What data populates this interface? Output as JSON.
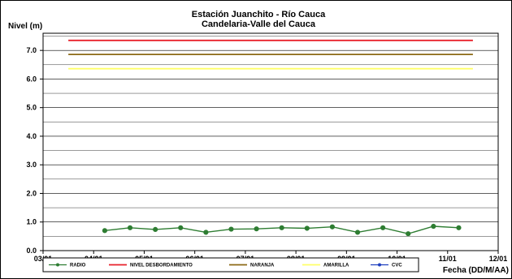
{
  "chart_data": {
    "type": "line",
    "title": "Estación Juanchito - Río Cauca",
    "subtitle": "Candelaria-Valle del Cauca",
    "ylabel": "Nivel (m)",
    "xlabel": "Fecha (DD/M/AA)",
    "x_ticks": [
      "03/01",
      "04/01",
      "05/01",
      "06/01",
      "07/01",
      "08/01",
      "09/01",
      "10/01",
      "11/01",
      "12/01"
    ],
    "y_ticks": [
      "0.0",
      "1.0",
      "2.0",
      "3.0",
      "4.0",
      "5.0",
      "6.0",
      "7.0"
    ],
    "xlim": [
      0,
      9
    ],
    "ylim": [
      0,
      7.6
    ],
    "grid": true,
    "legend_position": "bottom",
    "series": [
      {
        "name": "RADIO",
        "color": "#2e7d32",
        "marker": "circle",
        "x": [
          1.22,
          1.72,
          2.22,
          2.72,
          3.22,
          3.72,
          4.22,
          4.72,
          5.22,
          5.72,
          6.22,
          6.72,
          7.22,
          7.72,
          8.22
        ],
        "y": [
          0.7,
          0.8,
          0.74,
          0.8,
          0.64,
          0.75,
          0.76,
          0.8,
          0.78,
          0.83,
          0.64,
          0.8,
          0.59,
          0.85,
          0.8
        ]
      },
      {
        "name": "NIVEL DESBORDAMIENTO",
        "color": "#e8202a",
        "x": [
          0.5,
          8.5
        ],
        "y": [
          7.35,
          7.35
        ]
      },
      {
        "name": "NARANJA",
        "color": "#8b6914",
        "x": [
          0.5,
          8.5
        ],
        "y": [
          6.86,
          6.86
        ]
      },
      {
        "name": "AMARILLA",
        "color": "#ffff66",
        "x": [
          0.5,
          8.5
        ],
        "y": [
          6.36,
          6.36
        ]
      },
      {
        "name": "CVC",
        "color": "#1f3fbf",
        "marker": "circle",
        "x": [],
        "y": []
      }
    ]
  }
}
